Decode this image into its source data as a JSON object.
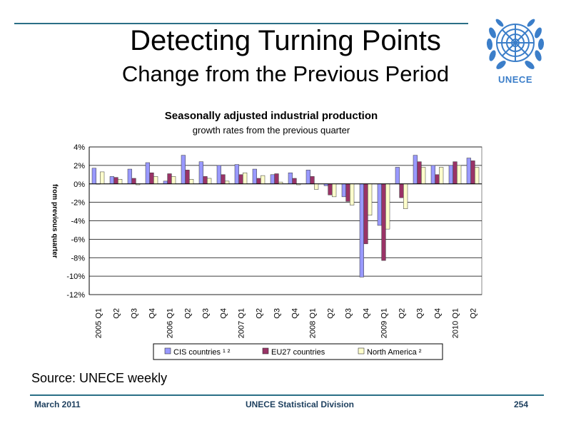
{
  "slide": {
    "title": "Detecting Turning Points",
    "subtitle": "Change from the Previous Period",
    "logo_text": "UNECE",
    "source": "Source: UNECE weekly"
  },
  "footer": {
    "left": "March 2011",
    "center": "UNECE Statistical Division",
    "right": "254"
  },
  "colors": {
    "accent_rule": "#2a6f86",
    "logo_blue": "#3b7ec9"
  },
  "chart_data": {
    "type": "bar",
    "title": "Seasonally adjusted industrial production",
    "subtitle": "growth rates from the previous quarter",
    "ylabel": "from previous quarter",
    "ylim": [
      -12,
      4
    ],
    "yticks": [
      4,
      2,
      0,
      -2,
      -4,
      -6,
      -8,
      -10,
      -12
    ],
    "ytick_labels": [
      "4%",
      "2%",
      "0%",
      "-2%",
      "-4%",
      "-6%",
      "-8%",
      "-10%",
      "-12%"
    ],
    "categories": [
      "2005 Q1",
      "Q2",
      "Q3",
      "Q4",
      "2006 Q1",
      "Q2",
      "Q3",
      "Q4",
      "2007 Q1",
      "Q2",
      "Q3",
      "Q4",
      "2008 Q1",
      "Q2",
      "Q3",
      "Q4",
      "2009 Q1",
      "Q2",
      "Q3",
      "Q4",
      "2010 Q1",
      "Q2"
    ],
    "grid": true,
    "legend_position": "bottom",
    "series": [
      {
        "name": "CIS countries ¹ ²",
        "color": "#9999ff",
        "values": [
          1.7,
          0.8,
          1.6,
          2.3,
          0.3,
          3.1,
          2.4,
          2.0,
          2.1,
          1.6,
          1.0,
          1.2,
          1.5,
          -0.2,
          -1.4,
          -10.1,
          -4.5,
          1.8,
          3.1,
          2.0,
          2.0,
          2.8
        ]
      },
      {
        "name": "EU27 countries",
        "color": "#993366",
        "values": [
          0.0,
          0.7,
          0.6,
          1.2,
          1.1,
          1.5,
          0.8,
          1.0,
          1.0,
          0.6,
          1.1,
          0.6,
          0.8,
          -1.2,
          -1.9,
          -6.5,
          -8.3,
          -1.5,
          2.4,
          1.0,
          2.4,
          2.5
        ]
      },
      {
        "name": "North America ²",
        "color": "#ffffcc",
        "values": [
          1.3,
          0.5,
          -0.1,
          0.8,
          0.8,
          0.5,
          0.6,
          0.3,
          1.2,
          0.9,
          0.2,
          -0.1,
          -0.6,
          -1.4,
          -2.3,
          -3.4,
          -4.9,
          -2.7,
          1.8,
          1.8,
          2.0,
          1.8
        ]
      }
    ]
  }
}
